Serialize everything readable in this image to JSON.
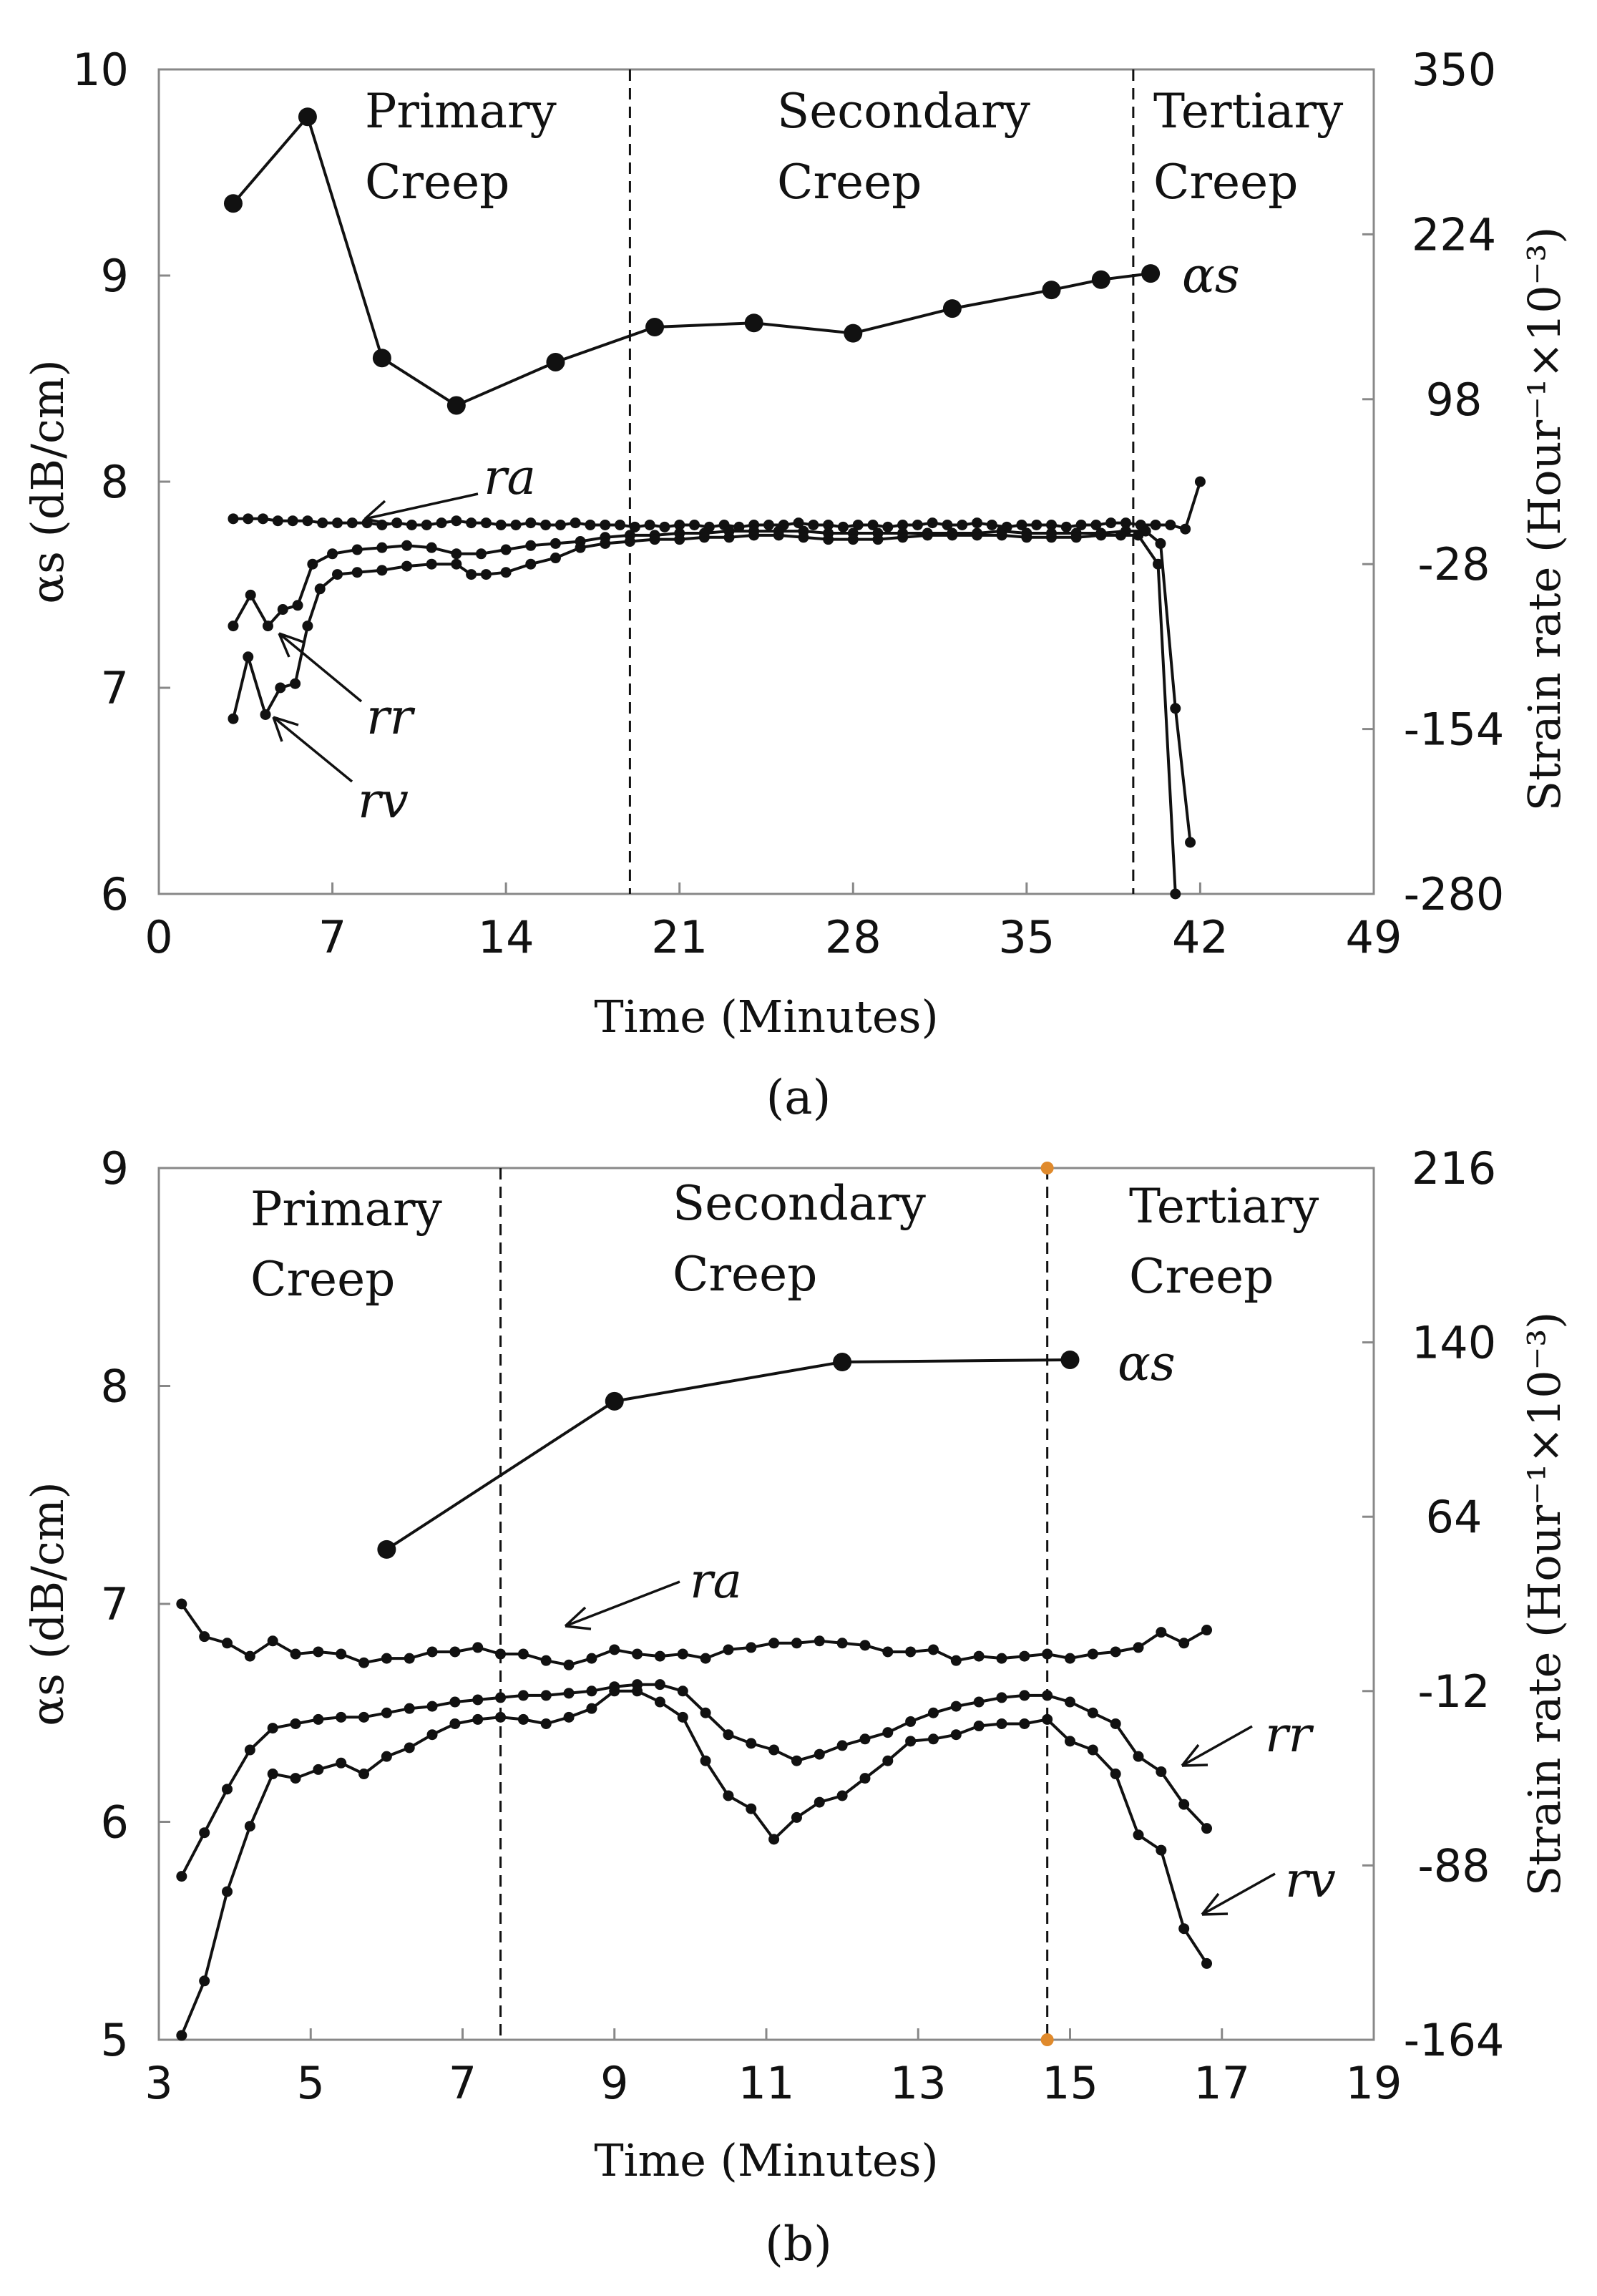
{
  "chart_data": [
    {
      "type": "line",
      "panel_label": "(a)",
      "xlabel": "Time (Minutes)",
      "ylabel": "αs (dB/cm)",
      "y2label": "Strain rate (Hour⁻¹×10⁻³)",
      "xlim": [
        0,
        49
      ],
      "ylim": [
        6,
        10
      ],
      "y2lim": [
        -280,
        350
      ],
      "xticks": [
        "0",
        "7",
        "14",
        "21",
        "28",
        "35",
        "42",
        "49"
      ],
      "yticks": [
        "6",
        "7",
        "8",
        "9",
        "10"
      ],
      "y2ticks": [
        "-280",
        "-154",
        "-28",
        "98",
        "224",
        "350"
      ],
      "phases": [
        {
          "line1": "Primary",
          "line2": "Creep"
        },
        {
          "line1": "Secondary",
          "line2": "Creep"
        },
        {
          "line1": "Tertiary",
          "line2": "Creep"
        }
      ],
      "phase_boundaries": [
        19,
        39.3
      ],
      "series": [
        {
          "name": "αs",
          "label": "αs",
          "marker": "large",
          "x": [
            3,
            6,
            9,
            12,
            16,
            20,
            24,
            28,
            32,
            36,
            38,
            40
          ],
          "values": [
            9.35,
            9.77,
            8.6,
            8.37,
            8.58,
            8.75,
            8.77,
            8.72,
            8.84,
            8.93,
            8.98,
            9.01
          ]
        },
        {
          "name": "ra",
          "label": "ra",
          "marker": "small",
          "x": [
            3,
            3.6,
            4.2,
            4.8,
            5.4,
            6,
            6.6,
            7.2,
            7.8,
            8.4,
            9,
            9.6,
            10.2,
            10.8,
            11.4,
            12,
            12.6,
            13.2,
            13.8,
            14.4,
            15,
            15.6,
            16.2,
            16.8,
            17.4,
            18,
            18.6,
            19.2,
            19.8,
            20.4,
            21,
            21.6,
            22.2,
            22.8,
            23.4,
            24,
            24.6,
            25.2,
            25.8,
            26.4,
            27,
            27.6,
            28.2,
            28.8,
            29.4,
            30,
            30.6,
            31.2,
            31.8,
            32.4,
            33,
            33.6,
            34.2,
            34.8,
            35.4,
            36,
            36.6,
            37.2,
            37.8,
            38.4,
            39,
            39.6,
            40.2,
            40.8,
            41.4,
            42
          ],
          "values": [
            7.82,
            7.82,
            7.82,
            7.81,
            7.81,
            7.81,
            7.8,
            7.8,
            7.8,
            7.8,
            7.79,
            7.8,
            7.79,
            7.79,
            7.8,
            7.81,
            7.8,
            7.8,
            7.79,
            7.79,
            7.8,
            7.79,
            7.79,
            7.8,
            7.79,
            7.79,
            7.79,
            7.78,
            7.79,
            7.78,
            7.79,
            7.79,
            7.78,
            7.79,
            7.78,
            7.79,
            7.79,
            7.79,
            7.8,
            7.79,
            7.79,
            7.78,
            7.79,
            7.79,
            7.78,
            7.79,
            7.79,
            7.8,
            7.79,
            7.79,
            7.8,
            7.79,
            7.78,
            7.79,
            7.79,
            7.79,
            7.78,
            7.79,
            7.79,
            7.8,
            7.8,
            7.79,
            7.79,
            7.79,
            7.77,
            8.0
          ]
        },
        {
          "name": "rr",
          "label": "rr",
          "marker": "small",
          "x": [
            3,
            3.7,
            4.4,
            5,
            5.6,
            6.2,
            7,
            8,
            9,
            10,
            11,
            12,
            13,
            14,
            15,
            16,
            17,
            18,
            19,
            20,
            21,
            22,
            23,
            24,
            25,
            26,
            27,
            28,
            29,
            30,
            31,
            32,
            33,
            34,
            35,
            36,
            37,
            38,
            39,
            39.8,
            40.4,
            41,
            41.6
          ],
          "values": [
            7.3,
            7.45,
            7.3,
            7.38,
            7.4,
            7.6,
            7.65,
            7.67,
            7.68,
            7.69,
            7.68,
            7.65,
            7.65,
            7.67,
            7.69,
            7.7,
            7.71,
            7.73,
            7.74,
            7.74,
            7.75,
            7.75,
            7.76,
            7.76,
            7.76,
            7.76,
            7.75,
            7.75,
            7.75,
            7.75,
            7.75,
            7.75,
            7.75,
            7.76,
            7.75,
            7.75,
            7.75,
            7.75,
            7.76,
            7.76,
            7.7,
            6.9,
            6.25
          ]
        },
        {
          "name": "rv",
          "label": "rv",
          "marker": "small",
          "x": [
            3,
            3.6,
            4.3,
            4.9,
            5.5,
            6,
            6.5,
            7.2,
            8,
            9,
            10,
            11,
            12,
            12.6,
            13.2,
            14,
            15,
            16,
            17,
            18,
            19,
            20,
            21,
            22,
            23,
            24,
            25,
            26,
            27,
            28,
            29,
            30,
            31,
            32,
            33,
            34,
            35,
            36,
            37,
            38,
            38.8,
            39.5,
            40.3,
            41
          ],
          "values": [
            6.85,
            7.15,
            6.87,
            7.0,
            7.02,
            7.3,
            7.48,
            7.55,
            7.56,
            7.57,
            7.59,
            7.6,
            7.6,
            7.55,
            7.55,
            7.56,
            7.6,
            7.63,
            7.68,
            7.7,
            7.71,
            7.72,
            7.72,
            7.73,
            7.73,
            7.74,
            7.74,
            7.73,
            7.72,
            7.72,
            7.72,
            7.73,
            7.74,
            7.74,
            7.74,
            7.74,
            7.73,
            7.73,
            7.73,
            7.74,
            7.74,
            7.74,
            7.6,
            6.0
          ]
        }
      ]
    },
    {
      "type": "line",
      "panel_label": "(b)",
      "xlabel": "Time (Minutes)",
      "ylabel": "αs (dB/cm)",
      "y2label": "Strain rate (Hour⁻¹×10⁻³)",
      "xlim": [
        3,
        19
      ],
      "ylim": [
        5,
        9
      ],
      "y2lim": [
        -164,
        216
      ],
      "xticks": [
        "3",
        "5",
        "7",
        "9",
        "11",
        "13",
        "15",
        "17",
        "19"
      ],
      "yticks": [
        "5",
        "6",
        "7",
        "8",
        "9"
      ],
      "y2ticks": [
        "-164",
        "-88",
        "-12",
        "64",
        "140",
        "216"
      ],
      "phases": [
        {
          "line1": "Primary",
          "line2": "Creep"
        },
        {
          "line1": "Secondary",
          "line2": "Creep"
        },
        {
          "line1": "Tertiary",
          "line2": "Creep"
        }
      ],
      "phase_boundaries": [
        7.5,
        14.7
      ],
      "boundary_marker_color": "#e08a2c",
      "series": [
        {
          "name": "αs",
          "label": "αs",
          "marker": "large",
          "x": [
            6,
            9,
            12,
            15
          ],
          "values": [
            7.25,
            7.93,
            8.11,
            8.12
          ]
        },
        {
          "name": "ra",
          "label": "ra",
          "marker": "small",
          "x": [
            3.3,
            3.6,
            3.9,
            4.2,
            4.5,
            4.8,
            5.1,
            5.4,
            5.7,
            6.0,
            6.3,
            6.6,
            6.9,
            7.2,
            7.5,
            7.8,
            8.1,
            8.4,
            8.7,
            9.0,
            9.3,
            9.6,
            9.9,
            10.2,
            10.5,
            10.8,
            11.1,
            11.4,
            11.7,
            12.0,
            12.3,
            12.6,
            12.9,
            13.2,
            13.5,
            13.8,
            14.1,
            14.4,
            14.7,
            15.0,
            15.3,
            15.6,
            15.9,
            16.2,
            16.5,
            16.8
          ],
          "values": [
            7.0,
            6.85,
            6.82,
            6.76,
            6.83,
            6.77,
            6.78,
            6.77,
            6.73,
            6.75,
            6.75,
            6.78,
            6.78,
            6.8,
            6.77,
            6.77,
            6.74,
            6.72,
            6.75,
            6.79,
            6.77,
            6.76,
            6.77,
            6.75,
            6.79,
            6.8,
            6.82,
            6.82,
            6.83,
            6.82,
            6.81,
            6.78,
            6.78,
            6.79,
            6.74,
            6.76,
            6.75,
            6.76,
            6.77,
            6.75,
            6.77,
            6.78,
            6.8,
            6.87,
            6.82,
            6.88
          ]
        },
        {
          "name": "rr",
          "label": "rr",
          "marker": "small",
          "x": [
            3.3,
            3.6,
            3.9,
            4.2,
            4.5,
            4.8,
            5.1,
            5.4,
            5.7,
            6.0,
            6.3,
            6.6,
            6.9,
            7.2,
            7.5,
            7.8,
            8.1,
            8.4,
            8.7,
            9.0,
            9.3,
            9.6,
            9.9,
            10.2,
            10.5,
            10.8,
            11.1,
            11.4,
            11.7,
            12.0,
            12.3,
            12.6,
            12.9,
            13.2,
            13.5,
            13.8,
            14.1,
            14.4,
            14.7,
            15.0,
            15.3,
            15.6,
            15.9,
            16.2,
            16.5,
            16.8
          ],
          "values": [
            5.75,
            5.95,
            6.15,
            6.33,
            6.43,
            6.45,
            6.47,
            6.48,
            6.48,
            6.5,
            6.52,
            6.53,
            6.55,
            6.56,
            6.57,
            6.58,
            6.58,
            6.59,
            6.6,
            6.62,
            6.63,
            6.63,
            6.6,
            6.5,
            6.4,
            6.36,
            6.33,
            6.28,
            6.31,
            6.35,
            6.38,
            6.41,
            6.46,
            6.5,
            6.53,
            6.55,
            6.57,
            6.58,
            6.58,
            6.55,
            6.5,
            6.45,
            6.3,
            6.23,
            6.08,
            5.97
          ]
        },
        {
          "name": "rv",
          "label": "rv",
          "marker": "small",
          "x": [
            3.3,
            3.6,
            3.9,
            4.2,
            4.5,
            4.8,
            5.1,
            5.4,
            5.7,
            6.0,
            6.3,
            6.6,
            6.9,
            7.2,
            7.5,
            7.8,
            8.1,
            8.4,
            8.7,
            9.0,
            9.3,
            9.6,
            9.9,
            10.2,
            10.5,
            10.8,
            11.1,
            11.4,
            11.7,
            12.0,
            12.3,
            12.6,
            12.9,
            13.2,
            13.5,
            13.8,
            14.1,
            14.4,
            14.7,
            15.0,
            15.3,
            15.6,
            15.9,
            16.2,
            16.5,
            16.8
          ],
          "values": [
            5.02,
            5.27,
            5.68,
            5.98,
            6.22,
            6.2,
            6.24,
            6.27,
            6.22,
            6.3,
            6.34,
            6.4,
            6.45,
            6.47,
            6.48,
            6.47,
            6.45,
            6.48,
            6.52,
            6.6,
            6.6,
            6.55,
            6.48,
            6.28,
            6.12,
            6.06,
            5.92,
            6.02,
            6.09,
            6.12,
            6.2,
            6.28,
            6.37,
            6.38,
            6.4,
            6.44,
            6.45,
            6.45,
            6.47,
            6.37,
            6.33,
            6.22,
            5.94,
            5.87,
            5.51,
            5.35
          ]
        }
      ]
    }
  ]
}
